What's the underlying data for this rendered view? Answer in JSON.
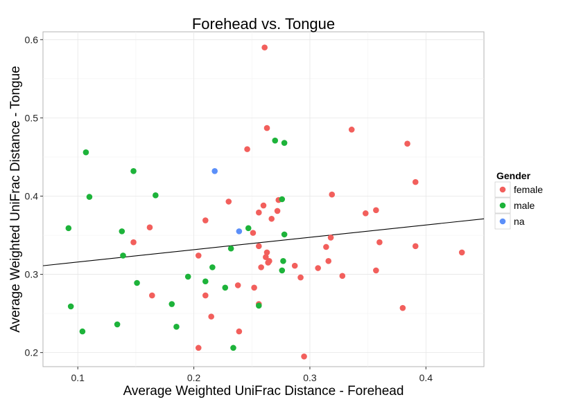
{
  "chart_data": {
    "type": "scatter",
    "title": "Forehead vs. Tongue",
    "xlabel": "Average Weighted UniFrac Distance - Forehead",
    "ylabel": "Average Weighted UniFrac Distance - Tongue",
    "xlim": [
      0.07,
      0.45
    ],
    "ylim": [
      0.182,
      0.61
    ],
    "x_ticks": [
      0.1,
      0.2,
      0.3,
      0.4
    ],
    "y_ticks": [
      0.2,
      0.3,
      0.4,
      0.5,
      0.6
    ],
    "x_tick_labels": [
      "0.1",
      "0.2",
      "0.3",
      "0.4"
    ],
    "y_tick_labels": [
      "0.2",
      "0.3",
      "0.4",
      "0.5",
      "0.6"
    ],
    "grid": true,
    "legend": {
      "title": "Gender",
      "position": "right",
      "entries": [
        {
          "label": "female",
          "color": "#f25f5c"
        },
        {
          "label": "male",
          "color": "#1db33a"
        },
        {
          "label": "na",
          "color": "#5b8ff9"
        }
      ]
    },
    "regression_line": {
      "x": [
        0.07,
        0.45
      ],
      "y": [
        0.311,
        0.371
      ]
    },
    "series": [
      {
        "name": "female",
        "color": "#f25f5c",
        "points": [
          [
            0.261,
            0.59
          ],
          [
            0.263,
            0.487
          ],
          [
            0.336,
            0.485
          ],
          [
            0.384,
            0.467
          ],
          [
            0.246,
            0.46
          ],
          [
            0.391,
            0.418
          ],
          [
            0.319,
            0.402
          ],
          [
            0.23,
            0.393
          ],
          [
            0.273,
            0.395
          ],
          [
            0.26,
            0.388
          ],
          [
            0.357,
            0.382
          ],
          [
            0.256,
            0.379
          ],
          [
            0.348,
            0.378
          ],
          [
            0.272,
            0.381
          ],
          [
            0.267,
            0.371
          ],
          [
            0.21,
            0.369
          ],
          [
            0.162,
            0.36
          ],
          [
            0.251,
            0.353
          ],
          [
            0.318,
            0.347
          ],
          [
            0.36,
            0.341
          ],
          [
            0.148,
            0.341
          ],
          [
            0.391,
            0.336
          ],
          [
            0.314,
            0.335
          ],
          [
            0.256,
            0.336
          ],
          [
            0.263,
            0.328
          ],
          [
            0.431,
            0.328
          ],
          [
            0.262,
            0.322
          ],
          [
            0.265,
            0.317
          ],
          [
            0.316,
            0.317
          ],
          [
            0.264,
            0.315
          ],
          [
            0.204,
            0.324
          ],
          [
            0.287,
            0.311
          ],
          [
            0.258,
            0.309
          ],
          [
            0.307,
            0.308
          ],
          [
            0.357,
            0.305
          ],
          [
            0.292,
            0.296
          ],
          [
            0.328,
            0.298
          ],
          [
            0.238,
            0.286
          ],
          [
            0.252,
            0.283
          ],
          [
            0.21,
            0.273
          ],
          [
            0.164,
            0.273
          ],
          [
            0.256,
            0.262
          ],
          [
            0.38,
            0.257
          ],
          [
            0.215,
            0.246
          ],
          [
            0.239,
            0.227
          ],
          [
            0.204,
            0.206
          ],
          [
            0.295,
            0.195
          ]
        ]
      },
      {
        "name": "male",
        "color": "#1db33a",
        "points": [
          [
            0.107,
            0.456
          ],
          [
            0.148,
            0.432
          ],
          [
            0.27,
            0.471
          ],
          [
            0.278,
            0.468
          ],
          [
            0.167,
            0.401
          ],
          [
            0.11,
            0.399
          ],
          [
            0.276,
            0.396
          ],
          [
            0.092,
            0.359
          ],
          [
            0.138,
            0.355
          ],
          [
            0.247,
            0.359
          ],
          [
            0.278,
            0.351
          ],
          [
            0.232,
            0.333
          ],
          [
            0.139,
            0.324
          ],
          [
            0.277,
            0.317
          ],
          [
            0.216,
            0.309
          ],
          [
            0.276,
            0.305
          ],
          [
            0.195,
            0.297
          ],
          [
            0.21,
            0.291
          ],
          [
            0.151,
            0.289
          ],
          [
            0.227,
            0.283
          ],
          [
            0.181,
            0.262
          ],
          [
            0.256,
            0.26
          ],
          [
            0.094,
            0.259
          ],
          [
            0.134,
            0.236
          ],
          [
            0.185,
            0.233
          ],
          [
            0.104,
            0.227
          ],
          [
            0.234,
            0.206
          ]
        ]
      },
      {
        "name": "na",
        "color": "#5b8ff9",
        "points": [
          [
            0.218,
            0.432
          ],
          [
            0.239,
            0.355
          ]
        ]
      }
    ]
  }
}
